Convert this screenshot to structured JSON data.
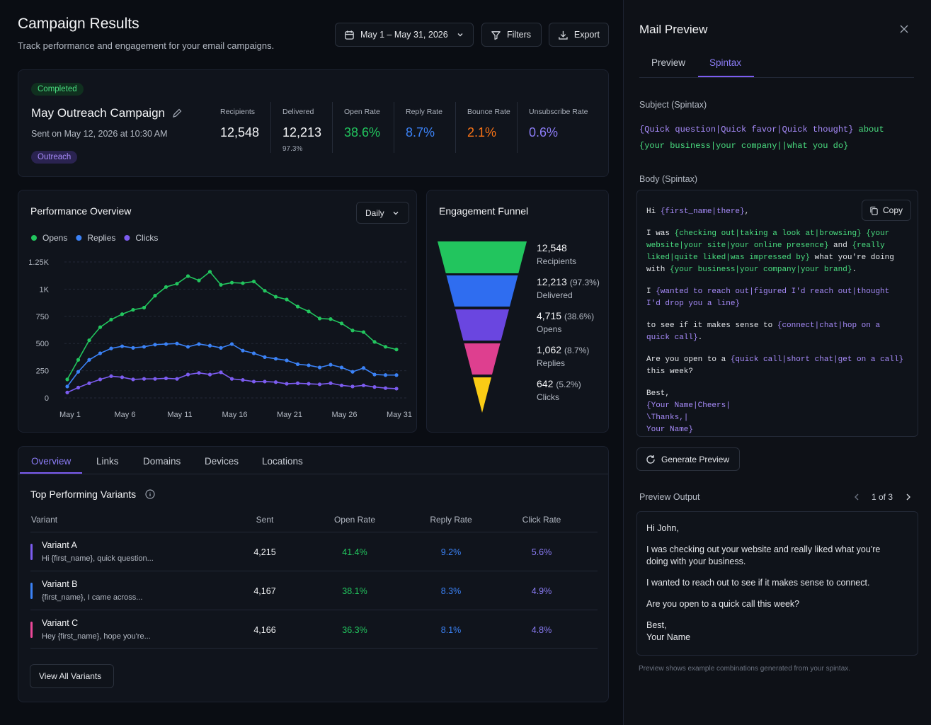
{
  "header": {
    "title": "Campaign Results",
    "subtitle": "Track performance and engagement for your email campaigns.",
    "date_range": "May 1 – May 31, 2026",
    "filters": "Filters",
    "export": "Export"
  },
  "campaign": {
    "status": "Completed",
    "name": "May Outreach Campaign",
    "sent": "Sent on May 12, 2026 at 10:30 AM",
    "tag": "Outreach",
    "stats": [
      {
        "label": "Recipients",
        "value": "12,548",
        "color": "#f3f4f6"
      },
      {
        "label": "Delivered",
        "value": "12,213",
        "sub": "97.3%",
        "color": "#f3f4f6"
      },
      {
        "label": "Open Rate",
        "value": "38.6%",
        "color": "#22c55e"
      },
      {
        "label": "Reply Rate",
        "value": "8.7%",
        "color": "#3b82f6"
      },
      {
        "label": "Bounce Rate",
        "value": "2.1%",
        "color": "#f97316"
      },
      {
        "label": "Unsubscribe Rate",
        "value": "0.6%",
        "color": "#8b7cf6"
      }
    ]
  },
  "chart_data": {
    "type": "line",
    "title": "Performance Overview",
    "period": "Daily",
    "grid": true,
    "categories": [
      "May 1",
      null,
      null,
      null,
      null,
      "May 6",
      null,
      null,
      null,
      null,
      "May 11",
      null,
      null,
      null,
      null,
      "May 16",
      null,
      null,
      null,
      null,
      "May 21",
      null,
      null,
      null,
      null,
      "May 26",
      null,
      null,
      null,
      null,
      "May 31"
    ],
    "ylim": [
      0,
      1250
    ],
    "yticks": [
      0,
      250,
      500,
      750,
      {
        "value": 1000,
        "label": "1K"
      },
      {
        "value": 1250,
        "label": "1.25K"
      }
    ],
    "series": [
      {
        "name": "Opens",
        "color": "#22c55e",
        "values": [
          170,
          350,
          530,
          650,
          720,
          770,
          810,
          830,
          940,
          1020,
          1050,
          1120,
          1080,
          1160,
          1040,
          1060,
          1055,
          1070,
          985,
          930,
          905,
          840,
          795,
          730,
          725,
          685,
          620,
          605,
          515,
          470,
          445
        ]
      },
      {
        "name": "Replies",
        "color": "#3b82f6",
        "values": [
          105,
          240,
          350,
          410,
          455,
          475,
          460,
          470,
          490,
          495,
          500,
          470,
          495,
          480,
          460,
          495,
          435,
          410,
          375,
          360,
          345,
          310,
          300,
          280,
          305,
          280,
          240,
          275,
          215,
          210,
          210
        ]
      },
      {
        "name": "Clicks",
        "color": "#7c5cf0",
        "values": [
          50,
          95,
          135,
          170,
          200,
          190,
          170,
          175,
          175,
          180,
          175,
          215,
          230,
          215,
          235,
          175,
          165,
          150,
          150,
          145,
          130,
          135,
          130,
          125,
          135,
          115,
          105,
          115,
          100,
          90,
          85
        ]
      }
    ]
  },
  "funnel": {
    "title": "Engagement Funnel",
    "stages": [
      {
        "value": "12,548",
        "label": "Recipients",
        "color": "#22c55e"
      },
      {
        "value": "12,213",
        "share": "(97.3%)",
        "label": "Delivered",
        "color": "#2f6df0"
      },
      {
        "value": "4,715",
        "share": "(38.6%)",
        "label": "Opens",
        "color": "#6a46e0"
      },
      {
        "value": "1,062",
        "share": "(8.7%)",
        "label": "Replies",
        "color": "#de3f8f"
      },
      {
        "value": "642",
        "share": "(5.2%)",
        "label": "Clicks",
        "color": "#facc15"
      }
    ]
  },
  "tabs": [
    "Overview",
    "Links",
    "Domains",
    "Devices",
    "Locations"
  ],
  "variants": {
    "title": "Top Performing Variants",
    "columns": [
      "Variant",
      "Sent",
      "Open Rate",
      "Reply Rate",
      "Click Rate"
    ],
    "rows": [
      {
        "name": "Variant A",
        "preview": "Hi {first_name}, quick question...",
        "color": "#7c5cf0",
        "cells": [
          "4,215",
          "41.4%",
          "9.2%",
          "5.6%"
        ]
      },
      {
        "name": "Variant B",
        "preview": "{first_name}, I came across...",
        "color": "#3b82f6",
        "cells": [
          "4,167",
          "38.1%",
          "8.3%",
          "4.9%"
        ]
      },
      {
        "name": "Variant C",
        "preview": "Hey {first_name}, hope you're...",
        "color": "#ec4899",
        "cells": [
          "4,166",
          "36.3%",
          "8.1%",
          "4.8%"
        ]
      }
    ],
    "button": "View All Variants"
  },
  "mail_preview": {
    "title": "Mail Preview",
    "tabs": [
      "Preview",
      "Spintax"
    ],
    "subject_label": "Subject (Spintax)",
    "subject": [
      [
        {
          "text": "{Quick question|Quick favor|Quick thought}",
          "color": "#a78bfa"
        },
        {
          "text": " about",
          "color": "#4ade80"
        }
      ],
      [
        {
          "text": "{your business|your company||what you do}",
          "color": "#4ade80"
        }
      ]
    ],
    "body_label": "Body (Spintax)",
    "copy": "Copy",
    "body": [
      [
        {
          "text": "Hi "
        },
        {
          "text": "{first_name|there}",
          "color": "#a78bfa"
        },
        {
          "text": ","
        }
      ],
      [
        {
          "text": "I was "
        },
        {
          "text": "{checking out|taking a look at|browsing}",
          "color": "#4ade80"
        },
        {
          "text": " "
        },
        {
          "text": "{your website|your site|your online presence}",
          "color": "#4ade80"
        },
        {
          "text": " and "
        },
        {
          "text": "{really liked|quite liked|was impressed by}",
          "color": "#4ade80"
        },
        {
          "text": " what you're doing with "
        },
        {
          "text": "{your business|your company|your brand}",
          "color": "#4ade80"
        },
        {
          "text": "."
        }
      ],
      [
        {
          "text": "I "
        },
        {
          "text": "{wanted to reach out|figured I'd reach out|thought I'd drop you a line}",
          "color": "#a78bfa"
        }
      ],
      [
        {
          "text": "to see if it makes sense to "
        },
        {
          "text": "{connect|chat|hop on a quick call}",
          "color": "#a78bfa"
        },
        {
          "text": "."
        }
      ],
      [
        {
          "text": "Are you open to a "
        },
        {
          "text": "{quick call|short chat|get on a call}",
          "color": "#a78bfa"
        },
        {
          "text": " this week?"
        }
      ],
      [
        {
          "text": "Best,\n"
        },
        {
          "text": "{Your Name|Cheers|\n\\Thanks,|\nYour Name}",
          "color": "#a78bfa"
        }
      ]
    ],
    "generate": "Generate Preview",
    "output_label": "Preview Output",
    "pager": "1 of 3",
    "output": [
      "Hi John,",
      "I was checking out your website and really liked what you're doing with your business.",
      "I wanted to reach out to see if it makes sense to connect.",
      "Are you open to a quick call this week?",
      "Best,\nYour Name"
    ],
    "note": "Preview shows example combinations generated from your spintax."
  }
}
